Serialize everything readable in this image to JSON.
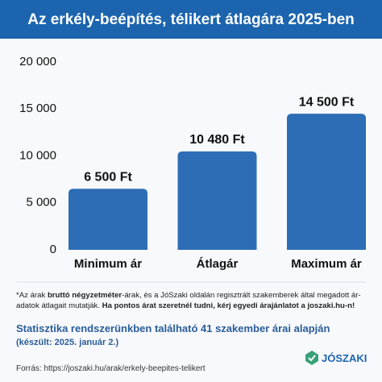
{
  "chart_data": {
    "type": "bar",
    "title": "Az erkély-beépítés, télikert átlagára 2025-ben",
    "categories": [
      "Minimum ár",
      "Átlagár",
      "Maximum ár"
    ],
    "values": [
      6500,
      10480,
      14500
    ],
    "value_labels": [
      "6 500 Ft",
      "10 480 Ft",
      "14 500 Ft"
    ],
    "color": "#2d6db5",
    "ylim": [
      0,
      20000
    ],
    "yticks": [
      0,
      {
        "value": 5000,
        "label": "5 000"
      },
      {
        "value": 10000,
        "label": "10 000"
      },
      {
        "value": 15000,
        "label": "15 000"
      },
      {
        "value": 20000,
        "label": "20 000"
      }
    ],
    "grid": false
  },
  "footnote": [
    "*Az árak ",
    "bruttó négyzetméter",
    "-árak, és a JóSzaki oldalán regisztrált szakemberek által megadott ár-adatok átlagait mutatják. ",
    "Ha pontos árat szeretnél tudni, kérj egyedi árajánlatot a joszaki.hu-n!"
  ],
  "statistics": "Statisztika rendszerünkben található 41 szakember árai alapján",
  "created": "(készült: 2025. január 2.)",
  "source": "Forrás: https://joszaki.hu/arak/erkely-beepites-telikert",
  "logo": "JÓSZAKI"
}
